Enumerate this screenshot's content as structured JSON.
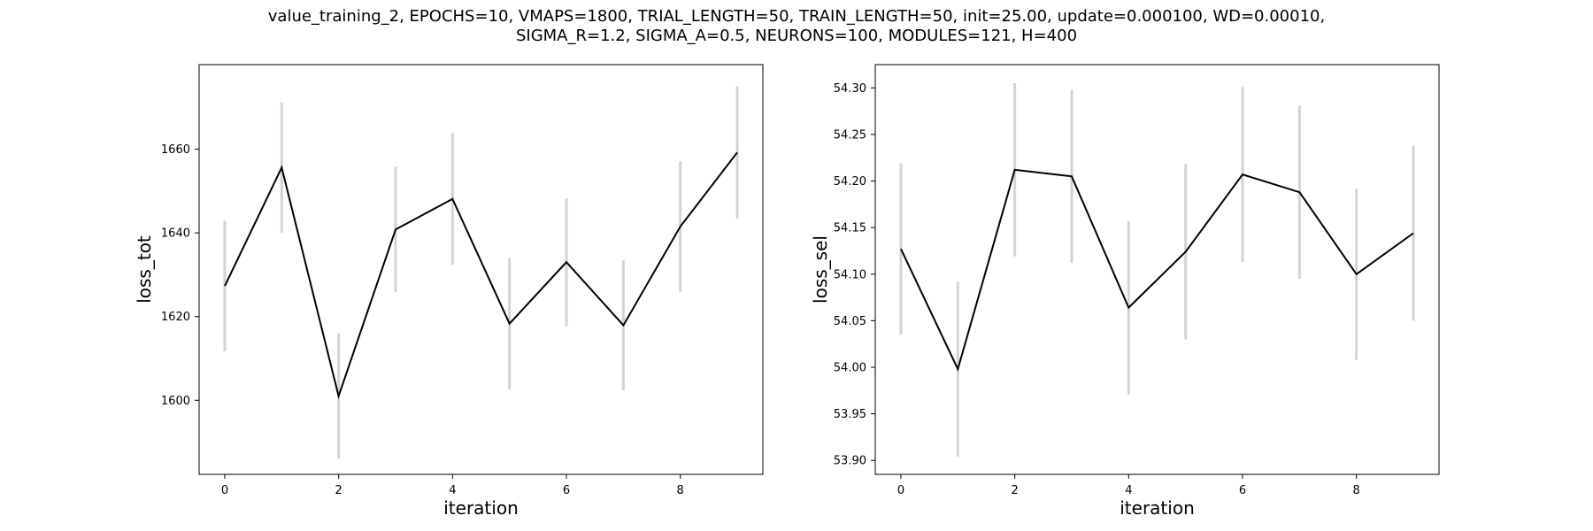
{
  "figure": {
    "title_line1": "value_training_2, EPOCHS=10, VMAPS=1800, TRIAL_LENGTH=50, TRAIN_LENGTH=50, init=25.00, update=0.000100, WD=0.00010,",
    "title_line2": "SIGMA_R=1.2, SIGMA_A=0.5, NEURONS=100, MODULES=121, H=400"
  },
  "chart_data": [
    {
      "type": "line",
      "xlabel": "iteration",
      "ylabel": "loss_tot",
      "x": [
        0,
        1,
        2,
        3,
        4,
        5,
        6,
        7,
        8,
        9
      ],
      "y": [
        1627.3,
        1655.6,
        1601.0,
        1640.8,
        1648.1,
        1618.3,
        1633.0,
        1617.9,
        1641.5,
        1659.2
      ],
      "error": [
        15.6,
        15.6,
        15.0,
        15.0,
        15.8,
        15.7,
        15.3,
        15.5,
        15.6,
        15.8
      ],
      "xlim": [
        -0.45,
        9.45
      ],
      "ylim": [
        1582.3,
        1680.2
      ],
      "xticks": [
        0,
        2,
        4,
        6,
        8
      ],
      "yticks": [
        1600,
        1620,
        1640,
        1660
      ],
      "ytick_labels": [
        "1600",
        "1620",
        "1640",
        "1660"
      ],
      "grid": false,
      "line_color": "#000000",
      "error_color": "#d3d3d3"
    },
    {
      "type": "line",
      "xlabel": "iteration",
      "ylabel": "loss_sel",
      "x": [
        0,
        1,
        2,
        3,
        4,
        5,
        6,
        7,
        8,
        9
      ],
      "y": [
        54.127,
        53.998,
        54.212,
        54.205,
        54.064,
        54.124,
        54.207,
        54.188,
        54.1,
        54.144
      ],
      "error": [
        0.092,
        0.094,
        0.093,
        0.093,
        0.093,
        0.094,
        0.094,
        0.093,
        0.092,
        0.094
      ],
      "xlim": [
        -0.45,
        9.45
      ],
      "ylim": [
        53.885,
        54.325
      ],
      "xticks": [
        0,
        2,
        4,
        6,
        8
      ],
      "yticks": [
        53.9,
        53.95,
        54.0,
        54.05,
        54.1,
        54.15,
        54.2,
        54.25,
        54.3
      ],
      "ytick_labels": [
        "53.90",
        "53.95",
        "54.00",
        "54.05",
        "54.10",
        "54.15",
        "54.20",
        "54.25",
        "54.30"
      ],
      "grid": false,
      "line_color": "#000000",
      "error_color": "#d3d3d3"
    }
  ]
}
